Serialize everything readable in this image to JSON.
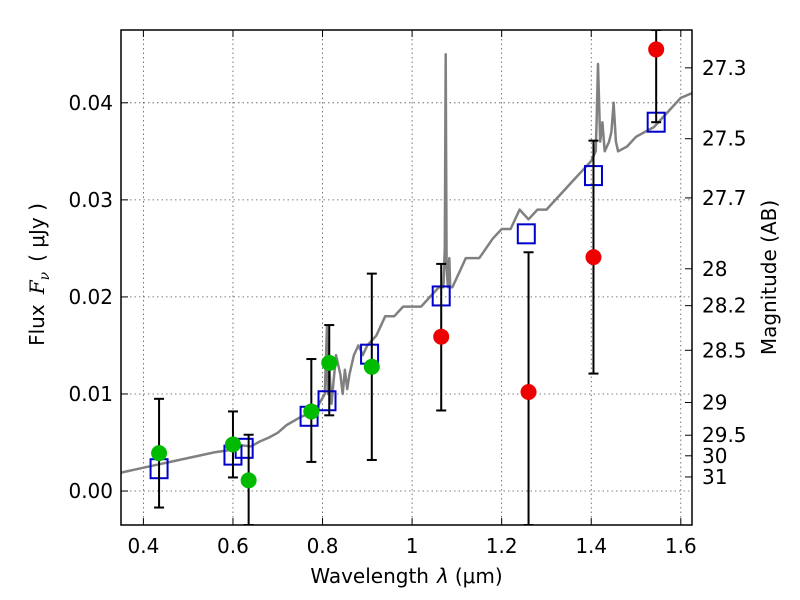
{
  "chart_data": {
    "type": "scatter",
    "xlabel": "Wavelength",
    "xlabel_symbol": "λ",
    "xlabel_unit": "(μm)",
    "ylabel": "Flux",
    "ylabel_symbol": "F",
    "ylabel_symbol_sub": "ν",
    "ylabel_unit": "( μJy )",
    "y2label": "Magnitude (AB)",
    "xlim": [
      0.35,
      1.625
    ],
    "ylim": [
      -0.0035,
      0.0475
    ],
    "grid": true,
    "x_ticks": [
      0.4,
      0.6,
      0.8,
      1.0,
      1.2,
      1.4,
      1.6
    ],
    "x_tick_labels": [
      "0.4",
      "0.6",
      "0.8",
      "1",
      "1.2",
      "1.4",
      "1.6"
    ],
    "y_ticks": [
      0.0,
      0.01,
      0.02,
      0.03,
      0.04
    ],
    "y_tick_labels": [
      "0.00",
      "0.01",
      "0.02",
      "0.03",
      "0.04"
    ],
    "y2_ticks": [
      {
        "label": "27.3",
        "flux": 0.0436
      },
      {
        "label": "27.5",
        "flux": 0.0363
      },
      {
        "label": "27.7",
        "flux": 0.0302
      },
      {
        "label": "28",
        "flux": 0.0229
      },
      {
        "label": "28.2",
        "flux": 0.0191
      },
      {
        "label": "28.5",
        "flux": 0.0145
      },
      {
        "label": "29",
        "flux": 0.00912
      },
      {
        "label": "29.5",
        "flux": 0.00575
      },
      {
        "label": "30",
        "flux": 0.00363
      },
      {
        "label": "31",
        "flux": 0.00145
      }
    ],
    "series": [
      {
        "kind": "line",
        "color": "#808080",
        "x": [
          0.35,
          0.38,
          0.4,
          0.43,
          0.46,
          0.5,
          0.53,
          0.56,
          0.59,
          0.61,
          0.62,
          0.64,
          0.66,
          0.68,
          0.7,
          0.72,
          0.75,
          0.77,
          0.79,
          0.805,
          0.81,
          0.812,
          0.815,
          0.82,
          0.83,
          0.84,
          0.845,
          0.85,
          0.855,
          0.86,
          0.87,
          0.88,
          0.89,
          0.9,
          0.92,
          0.94,
          0.96,
          0.98,
          1.0,
          1.02,
          1.04,
          1.06,
          1.07,
          1.073,
          1.075,
          1.077,
          1.08,
          1.083,
          1.085,
          1.09,
          1.1,
          1.12,
          1.15,
          1.18,
          1.2,
          1.22,
          1.24,
          1.26,
          1.28,
          1.3,
          1.32,
          1.34,
          1.36,
          1.38,
          1.4,
          1.41,
          1.412,
          1.415,
          1.42,
          1.425,
          1.43,
          1.44,
          1.445,
          1.45,
          1.455,
          1.46,
          1.48,
          1.5,
          1.52,
          1.54,
          1.56,
          1.58,
          1.6,
          1.625
        ],
        "y": [
          0.0019,
          0.0022,
          0.0024,
          0.0027,
          0.003,
          0.0034,
          0.0037,
          0.004,
          0.0042,
          0.0044,
          0.0047,
          0.0046,
          0.0051,
          0.0055,
          0.006,
          0.0068,
          0.0076,
          0.008,
          0.0088,
          0.01,
          0.017,
          0.01,
          0.013,
          0.009,
          0.014,
          0.012,
          0.01,
          0.0125,
          0.0105,
          0.012,
          0.014,
          0.015,
          0.014,
          0.015,
          0.016,
          0.018,
          0.018,
          0.019,
          0.019,
          0.019,
          0.02,
          0.021,
          0.021,
          0.025,
          0.045,
          0.023,
          0.021,
          0.024,
          0.021,
          0.021,
          0.022,
          0.024,
          0.024,
          0.026,
          0.027,
          0.027,
          0.029,
          0.028,
          0.029,
          0.029,
          0.03,
          0.031,
          0.032,
          0.033,
          0.034,
          0.035,
          0.038,
          0.044,
          0.036,
          0.038,
          0.035,
          0.036,
          0.037,
          0.04,
          0.036,
          0.035,
          0.0355,
          0.0365,
          0.037,
          0.0375,
          0.0385,
          0.0395,
          0.0405,
          0.041
        ]
      },
      {
        "kind": "model-points",
        "color": "#0000cc",
        "marker": "square",
        "x": [
          0.435,
          0.6,
          0.625,
          0.77,
          0.81,
          0.905,
          1.065,
          1.255,
          1.405,
          1.545
        ],
        "y": [
          0.0023,
          0.0037,
          0.0044,
          0.0077,
          0.0093,
          0.0141,
          0.0201,
          0.0265,
          0.0325,
          0.038
        ]
      },
      {
        "kind": "observed",
        "color": "#00bb00",
        "marker": "circle",
        "x": [
          0.435,
          0.6,
          0.635,
          0.775,
          0.815,
          0.91
        ],
        "y": [
          0.0039,
          0.0048,
          0.0011,
          0.0082,
          0.0132,
          0.0128
        ],
        "err_low": [
          -0.0017,
          0.0014,
          -0.0035,
          0.003,
          0.0078,
          0.0032
        ],
        "err_high": [
          0.0095,
          0.0082,
          0.0058,
          0.0136,
          0.0171,
          0.0224
        ]
      },
      {
        "kind": "observed",
        "color": "#ee0000",
        "marker": "circle",
        "x": [
          1.065,
          1.26,
          1.405,
          1.545
        ],
        "y": [
          0.0159,
          0.0102,
          0.0241,
          0.0455
        ],
        "err_low": [
          0.0083,
          -0.0035,
          0.0121,
          0.038
        ],
        "err_high": [
          0.0234,
          0.0246,
          0.0361,
          0.0475
        ]
      }
    ]
  }
}
